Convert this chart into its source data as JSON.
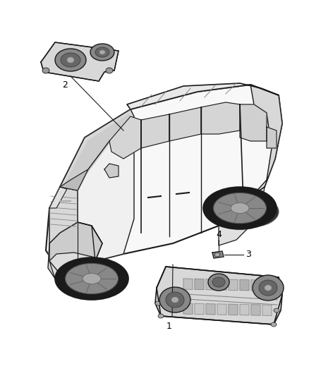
{
  "background_color": "#ffffff",
  "line_color": "#1a1a1a",
  "label_color": "#000000",
  "fig_width": 4.38,
  "fig_height": 5.33,
  "dpi": 100,
  "van_color": "#f8f8f8",
  "van_dark": "#d0d0d0",
  "van_roof": "#e8e8e8",
  "window_color": "#e0e0e0",
  "wheel_dark": "#2a2a2a",
  "wheel_mid": "#888888",
  "component_bg": "#e8e8e8",
  "component_dark": "#555555"
}
